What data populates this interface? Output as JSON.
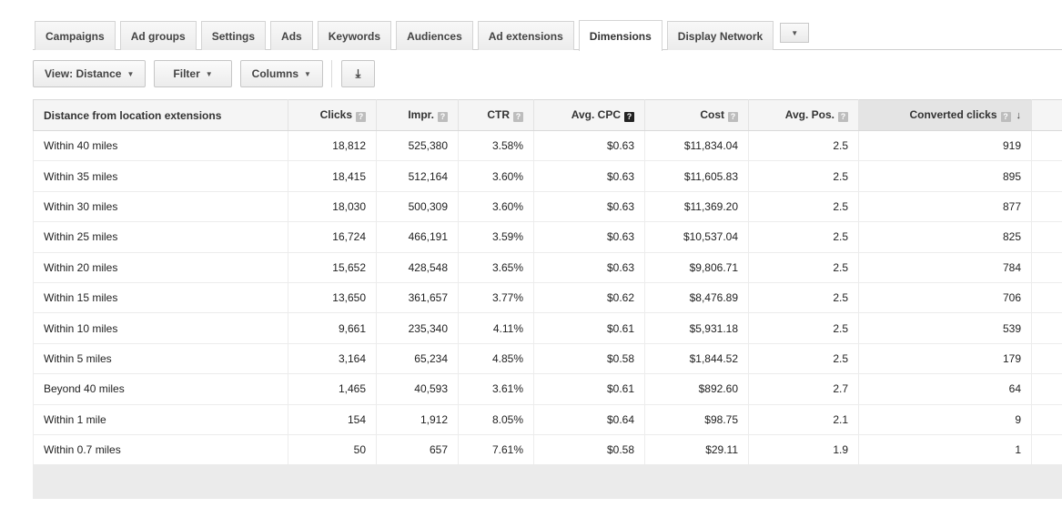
{
  "tabs": [
    {
      "label": "Campaigns",
      "active": false
    },
    {
      "label": "Ad groups",
      "active": false
    },
    {
      "label": "Settings",
      "active": false
    },
    {
      "label": "Ads",
      "active": false
    },
    {
      "label": "Keywords",
      "active": false
    },
    {
      "label": "Audiences",
      "active": false
    },
    {
      "label": "Ad extensions",
      "active": false
    },
    {
      "label": "Dimensions",
      "active": true
    },
    {
      "label": "Display Network",
      "active": false
    }
  ],
  "toolbar": {
    "view_label": "View: Distance",
    "filter_label": "Filter",
    "columns_label": "Columns",
    "download_icon": "download-icon"
  },
  "table": {
    "columns": [
      "Distance from location extensions",
      "Clicks",
      "Impr.",
      "CTR",
      "Avg. CPC",
      "Cost",
      "Avg. Pos.",
      "Converted clicks"
    ],
    "sorted_column": "Converted clicks",
    "sort_direction": "descending",
    "rows": [
      [
        "Within 40 miles",
        "18,812",
        "525,380",
        "3.58%",
        "$0.63",
        "$11,834.04",
        "2.5",
        "919"
      ],
      [
        "Within 35 miles",
        "18,415",
        "512,164",
        "3.60%",
        "$0.63",
        "$11,605.83",
        "2.5",
        "895"
      ],
      [
        "Within 30 miles",
        "18,030",
        "500,309",
        "3.60%",
        "$0.63",
        "$11,369.20",
        "2.5",
        "877"
      ],
      [
        "Within 25 miles",
        "16,724",
        "466,191",
        "3.59%",
        "$0.63",
        "$10,537.04",
        "2.5",
        "825"
      ],
      [
        "Within 20 miles",
        "15,652",
        "428,548",
        "3.65%",
        "$0.63",
        "$9,806.71",
        "2.5",
        "784"
      ],
      [
        "Within 15 miles",
        "13,650",
        "361,657",
        "3.77%",
        "$0.62",
        "$8,476.89",
        "2.5",
        "706"
      ],
      [
        "Within 10 miles",
        "9,661",
        "235,340",
        "4.11%",
        "$0.61",
        "$5,931.18",
        "2.5",
        "539"
      ],
      [
        "Within 5 miles",
        "3,164",
        "65,234",
        "4.85%",
        "$0.58",
        "$1,844.52",
        "2.5",
        "179"
      ],
      [
        "Beyond 40 miles",
        "1,465",
        "40,593",
        "3.61%",
        "$0.61",
        "$892.60",
        "2.7",
        "64"
      ],
      [
        "Within 1 mile",
        "154",
        "1,912",
        "8.05%",
        "$0.64",
        "$98.75",
        "2.1",
        "9"
      ],
      [
        "Within 0.7 miles",
        "50",
        "657",
        "7.61%",
        "$0.58",
        "$29.11",
        "1.9",
        "1"
      ]
    ]
  }
}
